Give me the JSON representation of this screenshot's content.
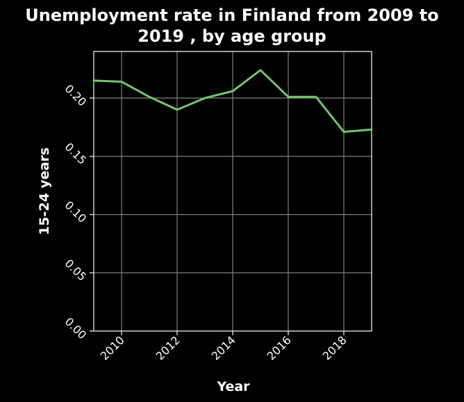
{
  "chart_data": {
    "type": "line",
    "title": "Unemployment rate in Finland from 2009 to 2019 , by age group",
    "title_lines": [
      "Unemployment rate in Finland from 2009 to",
      "2019 , by age group"
    ],
    "xlabel": "Year",
    "ylabel": "15-24 years",
    "xlim": [
      2009,
      2019
    ],
    "ylim": [
      0,
      0.24
    ],
    "xticks": [
      2010,
      2012,
      2014,
      2016,
      2018
    ],
    "xtick_labels": [
      "2010",
      "2012",
      "2014",
      "2016",
      "2018"
    ],
    "yticks": [
      0,
      0.05,
      0.1,
      0.15,
      0.2
    ],
    "ytick_labels": [
      "0.00",
      "0.05",
      "0.10",
      "0.15",
      "0.20"
    ],
    "grid": true,
    "series": [
      {
        "x": [
          2009,
          2010,
          2011,
          2012,
          2013,
          2014,
          2015,
          2016,
          2017,
          2018,
          2019
        ],
        "values": [
          0.215,
          0.214,
          0.201,
          0.19,
          0.2,
          0.206,
          0.224,
          0.201,
          0.201,
          0.171,
          0.173
        ]
      }
    ],
    "colors": {
      "background": "#000000",
      "line": "#77c372",
      "grid": "#808080",
      "axes": "#ffffff",
      "text": "#ffffff"
    }
  }
}
